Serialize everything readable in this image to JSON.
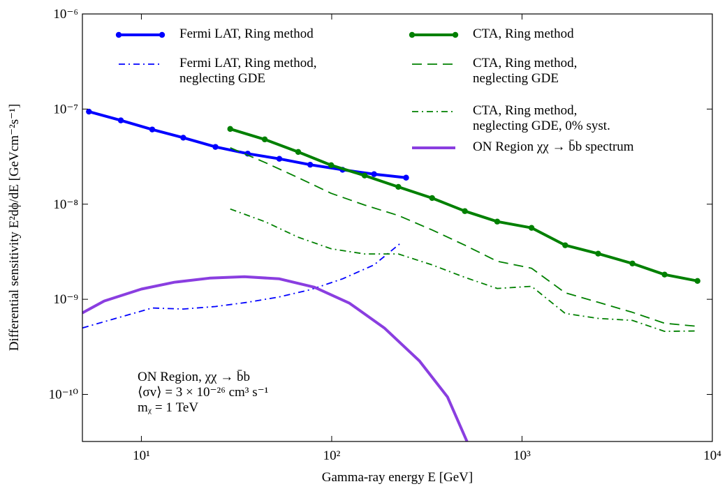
{
  "chart_data": {
    "type": "line",
    "xlabel": "Gamma-ray energy E [GeV]",
    "ylabel": "Differential sensitivity E²dϕ/dE [GeVcm⁻²s⁻¹]",
    "xlog": true,
    "ylog": true,
    "xlim": [
      4.9,
      10000
    ],
    "ylim": [
      3.2e-11,
      1e-06
    ],
    "xticks": [
      {
        "value": 10,
        "label": "10¹"
      },
      {
        "value": 100,
        "label": "10²"
      },
      {
        "value": 1000,
        "label": "10³"
      },
      {
        "value": 10000,
        "label": "10⁴"
      }
    ],
    "yticks": [
      {
        "value": 1e-10,
        "label": "10⁻¹⁰"
      },
      {
        "value": 1e-09,
        "label": "10⁻⁹"
      },
      {
        "value": 1e-08,
        "label": "10⁻⁸"
      },
      {
        "value": 1e-07,
        "label": "10⁻⁷"
      },
      {
        "value": 1e-06,
        "label": "10⁻⁶"
      }
    ],
    "series": [
      {
        "name": "Fermi LAT, Ring method",
        "color": "#0000ff",
        "linestyle": "solid",
        "marker": true,
        "x": [
          5.3,
          7.8,
          11.4,
          16.6,
          24.5,
          36.2,
          53.1,
          77.1,
          114,
          167,
          246
        ],
        "values": [
          9.4e-08,
          7.6e-08,
          6.1e-08,
          5e-08,
          4e-08,
          3.4e-08,
          3e-08,
          2.6e-08,
          2.3e-08,
          2.07e-08,
          1.9e-08
        ]
      },
      {
        "name": "Fermi LAT, Ring method,\nneglecting GDE",
        "color": "#0000ff",
        "linestyle": "dashdot",
        "marker": false,
        "x": [
          4.9,
          11.4,
          16.6,
          24.5,
          36.2,
          53.1,
          77.1,
          114,
          167,
          232
        ],
        "values": [
          5e-10,
          8.1e-10,
          7.9e-10,
          8.4e-10,
          9.3e-10,
          1.06e-09,
          1.26e-09,
          1.64e-09,
          2.3e-09,
          3.95e-09
        ]
      },
      {
        "name": "CTA, Ring method",
        "color": "#008000",
        "linestyle": "solid",
        "marker": true,
        "x": [
          29.3,
          44.5,
          66.7,
          99.4,
          149,
          224,
          337,
          501,
          741,
          1122,
          1686,
          2512,
          3802,
          5612,
          8356
        ],
        "values": [
          6.18e-08,
          4.8e-08,
          3.54e-08,
          2.57e-08,
          2e-08,
          1.52e-08,
          1.16e-08,
          8.45e-09,
          6.56e-09,
          5.64e-09,
          3.7e-09,
          3.02e-09,
          2.38e-09,
          1.82e-09,
          1.56e-09
        ]
      },
      {
        "name": "CTA, Ring method,\nneglecting GDE",
        "color": "#008000",
        "linestyle": "dashed",
        "marker": false,
        "x": [
          29.3,
          44.5,
          66.7,
          99.4,
          149,
          224,
          337,
          501,
          741,
          1122,
          1686,
          2512,
          3802,
          5612,
          8356
        ],
        "values": [
          3.92e-08,
          2.75e-08,
          1.9e-08,
          1.3e-08,
          9.8e-09,
          7.6e-09,
          5.36e-09,
          3.7e-09,
          2.51e-09,
          2.12e-09,
          1.17e-09,
          9.3e-10,
          7.3e-10,
          5.6e-10,
          5.2e-10
        ]
      },
      {
        "name": "CTA, Ring method,\nneglecting GDE, 0% syst.",
        "color": "#008000",
        "linestyle": "dashdot",
        "marker": false,
        "x": [
          29.3,
          44.5,
          66.7,
          99.4,
          149,
          224,
          337,
          501,
          741,
          1122,
          1686,
          2512,
          3802,
          5612,
          8356
        ],
        "values": [
          8.9e-09,
          6.56e-09,
          4.5e-09,
          3.4e-09,
          3e-09,
          3e-09,
          2.3e-09,
          1.7e-09,
          1.3e-09,
          1.37e-09,
          7.1e-10,
          6.3e-10,
          6e-10,
          4.6e-10,
          4.65e-10
        ]
      },
      {
        "name": "ON Region χχ → b̄b spectrum",
        "color": "#8a3ee0",
        "linestyle": "solid",
        "marker": false,
        "x": [
          4.9,
          6.38,
          10,
          14.9,
          22.8,
          34.8,
          53.1,
          81.1,
          124,
          189,
          289,
          406,
          514
        ],
        "values": [
          7.2e-10,
          9.6e-10,
          1.28e-09,
          1.51e-09,
          1.67e-09,
          1.73e-09,
          1.64e-09,
          1.34e-09,
          9.1e-10,
          5e-10,
          2.25e-10,
          9.4e-11,
          3.2e-11
        ]
      }
    ],
    "legend_columns": 2,
    "annotation": "ON Region, χχ → b̄b\n⟨σv⟩ = 3 × 10⁻²⁶ cm³ s⁻¹\nmᵪ = 1 TeV"
  }
}
